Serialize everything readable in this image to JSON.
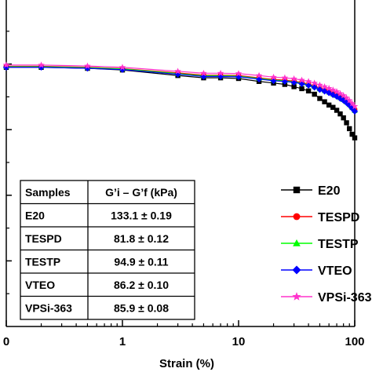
{
  "chart_data": {
    "type": "line",
    "xlabel": "Strain (%)",
    "ylabel": "",
    "x_scale": "log",
    "xlim": [
      0.1,
      100
    ],
    "x_tick_labels": [
      "0",
      "1",
      "10",
      "100"
    ],
    "grid": false,
    "legend_position": "bottom-right",
    "series": [
      {
        "name": "E20",
        "color": "#000000",
        "marker": "square",
        "x": [
          0.1,
          0.2,
          0.5,
          1,
          3,
          5,
          7,
          10,
          15,
          20,
          25,
          30,
          35,
          40,
          45,
          50,
          55,
          60,
          65,
          70,
          75,
          80,
          85,
          90,
          95,
          100
        ],
        "y": [
          79,
          79,
          78.7,
          78.2,
          76.5,
          75.8,
          75.8,
          75.6,
          74.7,
          74.2,
          73.8,
          73.1,
          72.5,
          71.8,
          70.8,
          69.5,
          68.5,
          67.5,
          66.8,
          65.9,
          64.8,
          63.6,
          62.1,
          60.3,
          58.6,
          57.5
        ]
      },
      {
        "name": "TESPD",
        "color": "#ff0000",
        "marker": "circle",
        "x": [
          0.1,
          0.2,
          0.5,
          1,
          3,
          5,
          7,
          10,
          15,
          20,
          25,
          30,
          35,
          40,
          45,
          50,
          55,
          60,
          65,
          70,
          75,
          80,
          85,
          90,
          95,
          100
        ],
        "y": [
          79.3,
          79.3,
          79,
          78.6,
          77.3,
          76.6,
          76.6,
          76.5,
          75.8,
          75.3,
          75.1,
          74.8,
          74.4,
          73.9,
          73.3,
          72.6,
          72.1,
          71.6,
          71.1,
          70.6,
          70.1,
          69.5,
          68.8,
          68,
          67.1,
          66.2
        ]
      },
      {
        "name": "TESTP",
        "color": "#00ff00",
        "marker": "triangle",
        "x": [
          0.1,
          0.2,
          0.5,
          1,
          3,
          5,
          7,
          10,
          15,
          20,
          25,
          30,
          35,
          40,
          45,
          50,
          55,
          60,
          65,
          70,
          75,
          80,
          85,
          90,
          95,
          100
        ],
        "y": [
          79.2,
          79.2,
          78.9,
          78.5,
          77.1,
          76.4,
          76.4,
          76.3,
          75.6,
          75.1,
          74.9,
          74.6,
          74.2,
          73.7,
          73.1,
          72.4,
          71.9,
          71.4,
          70.8,
          70.3,
          69.7,
          69.1,
          68.4,
          67.6,
          66.7,
          65.8
        ]
      },
      {
        "name": "VTEO",
        "color": "#0000ff",
        "marker": "diamond",
        "x": [
          0.1,
          0.2,
          0.5,
          1,
          3,
          5,
          7,
          10,
          15,
          20,
          25,
          30,
          35,
          40,
          45,
          50,
          55,
          60,
          65,
          70,
          75,
          80,
          85,
          90,
          95,
          100
        ],
        "y": [
          79,
          79,
          78.7,
          78.3,
          76.9,
          76.2,
          76.2,
          76.1,
          75.4,
          74.9,
          74.7,
          74.4,
          74,
          73.5,
          72.9,
          72.2,
          71.7,
          71.2,
          70.6,
          70.1,
          69.5,
          68.9,
          68.2,
          67.4,
          66.5,
          65.6
        ]
      },
      {
        "name": "VPSi-363",
        "color": "#ff33cc",
        "marker": "star",
        "x": [
          0.1,
          0.2,
          0.5,
          1,
          3,
          5,
          7,
          10,
          15,
          20,
          25,
          30,
          35,
          40,
          45,
          50,
          55,
          60,
          65,
          70,
          75,
          80,
          85,
          90,
          95,
          100
        ],
        "y": [
          79.7,
          79.7,
          79.4,
          79,
          77.8,
          77.2,
          77.2,
          77.1,
          76.5,
          76,
          75.8,
          75.5,
          75.1,
          74.7,
          74.2,
          73.6,
          73.1,
          72.6,
          72.1,
          71.6,
          71,
          70.4,
          69.7,
          68.9,
          68,
          67.1
        ]
      }
    ],
    "table": {
      "headers": [
        "Samples",
        "G’i – G’f (kPa)"
      ],
      "rows": [
        [
          "E20",
          "133.1 ± 0.19"
        ],
        [
          "TESPD",
          "81.8 ± 0.12"
        ],
        [
          "TESTP",
          "94.9 ± 0.11"
        ],
        [
          "VTEO",
          "86.2 ± 0.10"
        ],
        [
          "VPSi-363",
          "85.9 ± 0.08"
        ]
      ]
    }
  }
}
